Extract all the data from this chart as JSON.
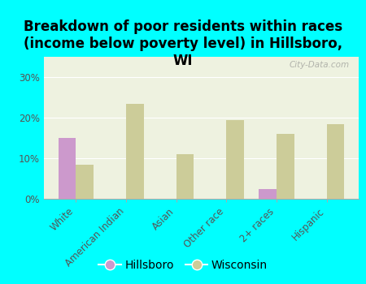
{
  "title": "Breakdown of poor residents within races\n(income below poverty level) in Hillsboro,\nWI",
  "categories": [
    "White",
    "American Indian",
    "Asian",
    "Other race",
    "2+ races",
    "Hispanic"
  ],
  "hillsboro_values": [
    15.0,
    0.0,
    0.0,
    0.0,
    2.5,
    0.0
  ],
  "wisconsin_values": [
    8.5,
    23.5,
    11.0,
    19.5,
    16.0,
    18.5
  ],
  "hillsboro_color": "#cc99cc",
  "wisconsin_color": "#cccc99",
  "background_color": "#00ffff",
  "plot_bg_color": "#eef2e0",
  "ylim": [
    0,
    35
  ],
  "yticks": [
    0,
    10,
    20,
    30
  ],
  "ytick_labels": [
    "0%",
    "10%",
    "20%",
    "30%"
  ],
  "bar_width": 0.35,
  "legend_labels": [
    "Hillsboro",
    "Wisconsin"
  ],
  "watermark": "City-Data.com",
  "title_fontsize": 12,
  "tick_fontsize": 8.5,
  "legend_fontsize": 10
}
